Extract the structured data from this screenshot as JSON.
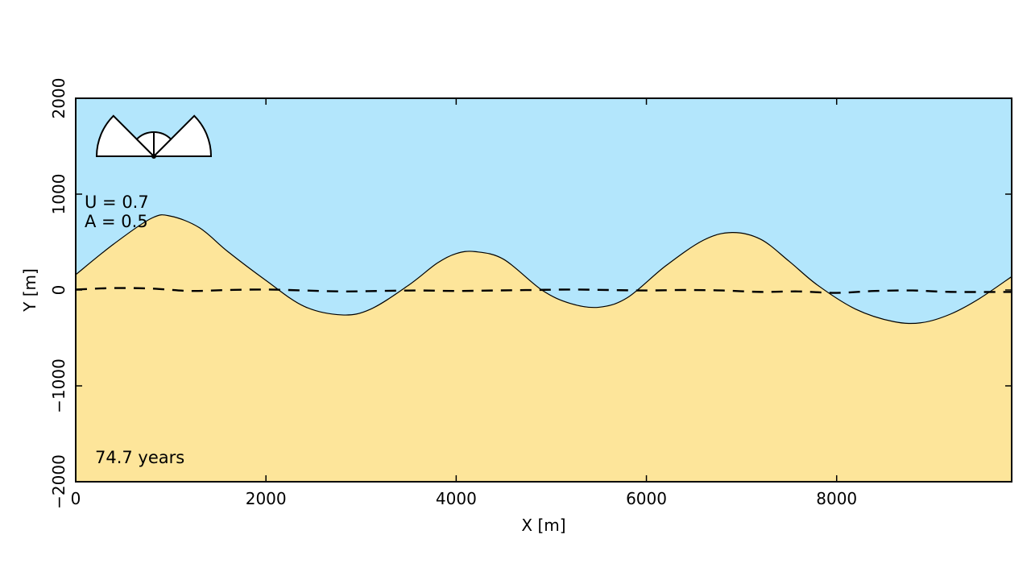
{
  "chart_data": {
    "type": "area",
    "title": "",
    "xlabel": "X [m]",
    "ylabel": "Y [m]",
    "xlim": [
      0,
      9840
    ],
    "ylim": [
      -2000,
      2000
    ],
    "xticks": [
      0,
      2000,
      4000,
      6000,
      8000
    ],
    "yticks": [
      2000,
      1000,
      0,
      -1000,
      -2000
    ],
    "xtick_labels": [
      "0",
      "2000",
      "4000",
      "6000",
      "8000"
    ],
    "ytick_labels": [
      "2000",
      "1000",
      "0",
      "−1000",
      "−2000"
    ],
    "grid": false,
    "colors": {
      "sea": "#b3e6fc",
      "land": "#fde59a",
      "shoreline": "#000000",
      "initial_shoreline": "#000000"
    },
    "annotations": {
      "u_text": "U = 0.7",
      "a_text": "A = 0.5",
      "time_text": "74.7 years"
    },
    "wave_climate_icon": "wave-angle-distribution-icon",
    "series": [
      {
        "role": "shoreline",
        "style": "solid",
        "x": [
          0,
          400,
          800,
          1000,
          1300,
          1600,
          2000,
          2400,
          2800,
          3100,
          3500,
          3800,
          4000,
          4200,
          4500,
          4900,
          5200,
          5500,
          5800,
          6200,
          6600,
          6900,
          7200,
          7500,
          7800,
          8200,
          8600,
          8900,
          9200,
          9500,
          9840
        ],
        "y": [
          160,
          480,
          750,
          770,
          650,
          400,
          100,
          -170,
          -260,
          -200,
          50,
          280,
          380,
          400,
          320,
          0,
          -140,
          -180,
          -80,
          250,
          520,
          600,
          530,
          300,
          50,
          -200,
          -330,
          -340,
          -250,
          -90,
          140
        ]
      },
      {
        "role": "initial_shoreline",
        "style": "dashed",
        "x": [
          0,
          400,
          800,
          1200,
          1600,
          2000,
          2400,
          2800,
          3200,
          3600,
          4000,
          4400,
          4800,
          5200,
          5600,
          6000,
          6400,
          6800,
          7200,
          7600,
          8000,
          8400,
          8800,
          9200,
          9840
        ],
        "y": [
          5,
          20,
          15,
          -10,
          0,
          5,
          -5,
          -15,
          -10,
          -5,
          -10,
          -5,
          0,
          5,
          0,
          -5,
          0,
          -5,
          -20,
          -15,
          -30,
          -10,
          -5,
          -20,
          -20
        ]
      }
    ]
  }
}
